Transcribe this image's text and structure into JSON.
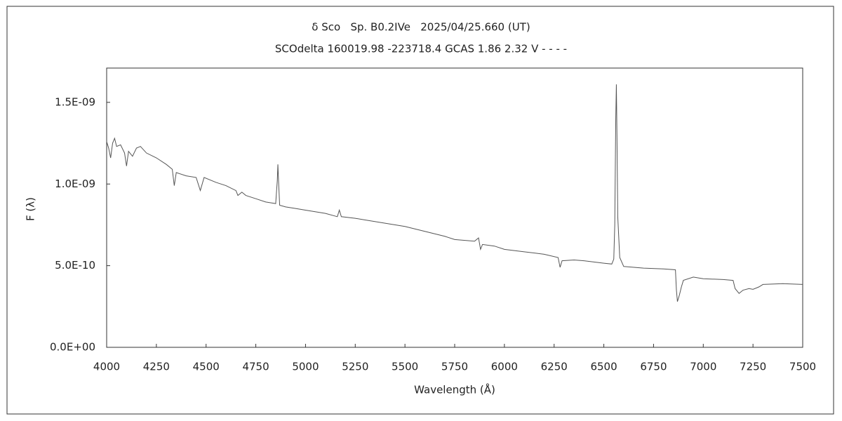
{
  "chart_data": {
    "type": "line",
    "title": "δ Sco   Sp. B0.2IVe   2025/04/25.660 (UT)",
    "subtitle": "SCOdelta 160019.98 -223718.4 GCAS 1.86 2.32 V - - - -",
    "x_label": "Wavelength (Å)",
    "y_label": "F (λ)",
    "xlim": [
      4000,
      7500
    ],
    "xticks": [
      4000,
      4250,
      4500,
      4750,
      5000,
      5250,
      5500,
      5750,
      6000,
      6250,
      6500,
      6750,
      7000,
      7250,
      7500
    ],
    "ylim": [
      0,
      1.71e-09
    ],
    "yticks": [
      {
        "value": 0,
        "label": "0.0E+00"
      },
      {
        "value": 5e-10,
        "label": "5.0E-10"
      },
      {
        "value": 1e-09,
        "label": "1.0E-09"
      },
      {
        "value": 1.5e-09,
        "label": "1.5E-09"
      }
    ],
    "grid": false,
    "series": [
      {
        "color": "#555555",
        "x": [
          4000,
          4010,
          4020,
          4030,
          4040,
          4050,
          4070,
          4090,
          4100,
          4110,
          4130,
          4150,
          4170,
          4200,
          4250,
          4300,
          4330,
          4340,
          4350,
          4400,
          4450,
          4471,
          4490,
          4550,
          4600,
          4650,
          4660,
          4680,
          4700,
          4750,
          4800,
          4850,
          4858,
          4861,
          4865,
          4870,
          4900,
          4950,
          5000,
          5100,
          5160,
          5170,
          5180,
          5250,
          5300,
          5400,
          5500,
          5600,
          5700,
          5750,
          5850,
          5870,
          5880,
          5890,
          5950,
          6000,
          6100,
          6200,
          6270,
          6280,
          6290,
          6350,
          6400,
          6500,
          6540,
          6550,
          6555,
          6560,
          6563,
          6566,
          6570,
          6580,
          6600,
          6700,
          6800,
          6860,
          6865,
          6870,
          6880,
          6890,
          6900,
          6950,
          7000,
          7100,
          7150,
          7160,
          7180,
          7200,
          7230,
          7250,
          7280,
          7300,
          7400,
          7500
        ],
        "values": [
          1.26e-09,
          1.22e-09,
          1.16e-09,
          1.25e-09,
          1.28e-09,
          1.23e-09,
          1.24e-09,
          1.19e-09,
          1.11e-09,
          1.2e-09,
          1.17e-09,
          1.22e-09,
          1.23e-09,
          1.19e-09,
          1.16e-09,
          1.12e-09,
          1.09e-09,
          9.9e-10,
          1.07e-09,
          1.05e-09,
          1.04e-09,
          9.6e-10,
          1.04e-09,
          1.01e-09,
          9.9e-10,
          9.6e-10,
          9.3e-10,
          9.5e-10,
          9.3e-10,
          9.1e-10,
          8.9e-10,
          8.8e-10,
          1.02e-09,
          1.12e-09,
          1e-09,
          8.7e-10,
          8.6e-10,
          8.5e-10,
          8.4e-10,
          8.2e-10,
          8e-10,
          8.4e-10,
          8e-10,
          7.9e-10,
          7.8e-10,
          7.6e-10,
          7.4e-10,
          7.1e-10,
          6.8e-10,
          6.6e-10,
          6.5e-10,
          6.7e-10,
          6e-10,
          6.3e-10,
          6.2e-10,
          6e-10,
          5.85e-10,
          5.7e-10,
          5.5e-10,
          4.9e-10,
          5.3e-10,
          5.35e-10,
          5.3e-10,
          5.15e-10,
          5.1e-10,
          5.4e-10,
          7.5e-10,
          1.4e-09,
          1.61e-09,
          1.3e-09,
          8e-10,
          5.5e-10,
          4.95e-10,
          4.85e-10,
          4.8e-10,
          4.75e-10,
          3.5e-10,
          2.8e-10,
          3.2e-10,
          3.7e-10,
          4.1e-10,
          4.3e-10,
          4.2e-10,
          4.15e-10,
          4.1e-10,
          3.6e-10,
          3.3e-10,
          3.5e-10,
          3.6e-10,
          3.55e-10,
          3.7e-10,
          3.85e-10,
          3.9e-10,
          3.85e-10
        ]
      }
    ]
  }
}
